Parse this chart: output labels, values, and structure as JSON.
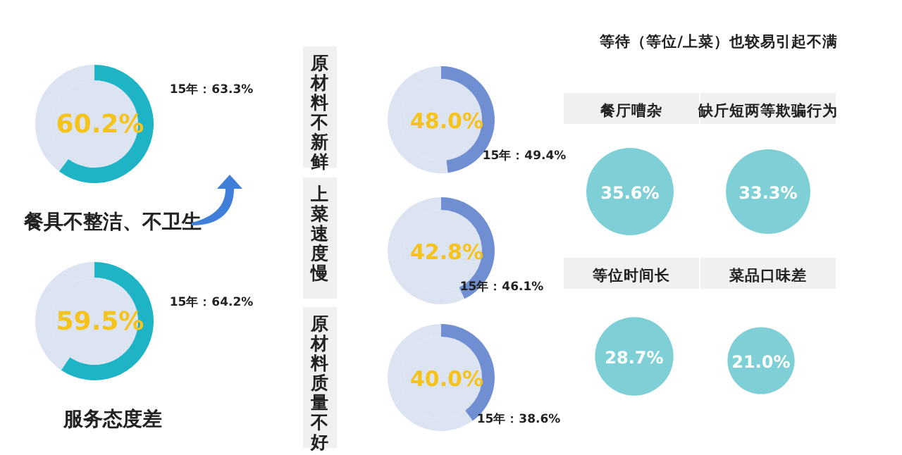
{
  "chart_data": [
    {
      "type": "donut",
      "title": "餐具不整洁、不卫生",
      "categories": [
        null,
        null
      ],
      "values": [
        60.2,
        39.8
      ],
      "colors": [
        "#1fb3c6",
        "#dce3f1"
      ],
      "value_labels": [
        "60.2%",
        null
      ],
      "annotations": [
        "15年：63.3%"
      ]
    },
    {
      "type": "donut",
      "title": "服务态度差",
      "categories": [
        null,
        null
      ],
      "values": [
        59.5,
        40.5
      ],
      "colors": [
        "#1fb3c6",
        "#dce3f1"
      ],
      "value_labels": [
        "59.5%",
        null
      ],
      "annotations": [
        "15年：64.2%"
      ]
    },
    {
      "type": "donut",
      "title": "原材料不新鲜",
      "categories": [
        null,
        null
      ],
      "values": [
        48.0,
        52.0
      ],
      "colors": [
        "#6f8fd2",
        "#dce3f1"
      ],
      "value_labels": [
        "48.0%",
        null
      ],
      "annotations": [
        "15年：49.4%"
      ]
    },
    {
      "type": "donut",
      "title": "上菜速度慢",
      "categories": [
        null,
        null
      ],
      "values": [
        42.8,
        57.2
      ],
      "colors": [
        "#6f8fd2",
        "#dce3f1"
      ],
      "value_labels": [
        "42.8%",
        null
      ],
      "annotations": [
        "15年：46.1%"
      ]
    },
    {
      "type": "donut",
      "title": "原材料质量不好",
      "categories": [
        null,
        null
      ],
      "values": [
        40.0,
        60.0
      ],
      "colors": [
        "#6f8fd2",
        "#dce3f1"
      ],
      "value_labels": [
        "40.0%",
        null
      ],
      "annotations": [
        "15年：38.6%"
      ]
    },
    {
      "type": "other",
      "title": "等待（等位/上菜）也较易引起不满",
      "categories": [
        "餐厅嘈杂",
        "缺斤短两等欺骗行为",
        "等位时间长",
        "菜品口味差"
      ],
      "values": [
        35.6,
        33.3,
        28.7,
        21.0
      ],
      "color": "#7fd0d6",
      "value_labels": [
        "35.6%",
        "33.3%",
        "28.7%",
        "21.0%"
      ]
    }
  ]
}
